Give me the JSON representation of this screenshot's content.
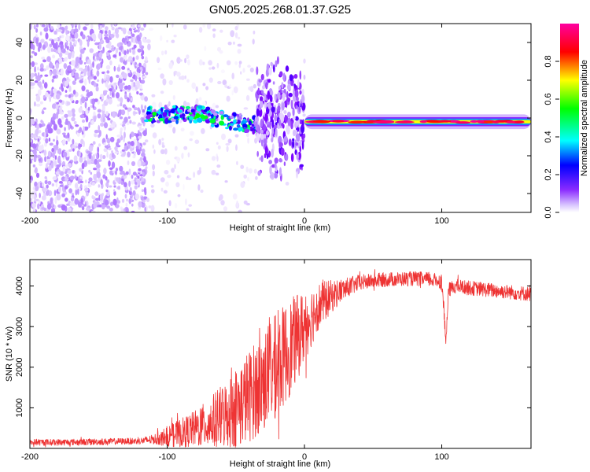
{
  "title": "GN05.2025.268.01.37.G25",
  "chart_data": [
    {
      "type": "heatmap",
      "name": "spectrogram",
      "title": "GN05.2025.268.01.37.G25",
      "xlabel": "Height of straight line (km)",
      "ylabel": "Frequency (Hz)",
      "xlim": [
        -200,
        165
      ],
      "ylim": [
        -50,
        50
      ],
      "xticks": [
        "-200",
        "-100",
        "0",
        "100"
      ],
      "yticks": [
        "-40",
        "-20",
        "0",
        "20",
        "40"
      ],
      "xtick_values": [
        -200,
        -100,
        0,
        100
      ],
      "ytick_values": [
        -40,
        -20,
        0,
        20,
        40
      ],
      "colorbar": {
        "label": "Normalized spectral amplitude",
        "range": [
          0,
          1
        ],
        "ticks": [
          "0.0",
          "0.2",
          "0.4",
          "0.6",
          "0.8"
        ],
        "tick_values": [
          0.0,
          0.2,
          0.4,
          0.6,
          0.8
        ],
        "colors": [
          "#ffffff",
          "#b98cff",
          "#7a00ff",
          "#0000ff",
          "#00ffff",
          "#00ff00",
          "#ffff00",
          "#ff0000",
          "#ff00a0"
        ]
      },
      "segments": [
        {
          "region": "noise",
          "x_start": -200,
          "x_end": -115,
          "freq_center_hz": 0,
          "freq_spread_hz": 50,
          "amplitude": 0.05
        },
        {
          "region": "weak-noise",
          "x_start": -115,
          "x_end": -35,
          "freq_center_hz": 0,
          "freq_spread_hz": 50,
          "amplitude": 0.02
        },
        {
          "region": "signal-onset",
          "x_start": -115,
          "x_end": -35,
          "freq_center_hz": 0,
          "freq_spread_hz": 5,
          "amplitude": 0.35
        },
        {
          "region": "scintillation",
          "x_start": -35,
          "x_end": 0,
          "freq_center_hz": 0,
          "freq_spread_hz": 35,
          "amplitude": 0.12
        },
        {
          "region": "tracked-carrier",
          "x_start": 0,
          "x_end": 165,
          "freq_center_hz": -2,
          "freq_spread_hz": 3,
          "amplitude": 0.75
        }
      ]
    },
    {
      "type": "line",
      "name": "snr",
      "xlabel": "Height of straight line (km)",
      "ylabel": "SNR (10 * v/v)",
      "xlim": [
        -200,
        165
      ],
      "ylim": [
        0,
        4650
      ],
      "xticks": [
        "-200",
        "-100",
        "0",
        "100"
      ],
      "yticks": [
        "1000",
        "2000",
        "3000",
        "4000"
      ],
      "xtick_values": [
        -200,
        -100,
        0,
        100
      ],
      "ytick_values": [
        1000,
        2000,
        3000,
        4000
      ],
      "series": [
        {
          "name": "SNR",
          "color": "#ee3333",
          "x": [
            -200,
            -180,
            -160,
            -140,
            -120,
            -110,
            -100,
            -90,
            -80,
            -70,
            -60,
            -50,
            -40,
            -30,
            -20,
            -10,
            0,
            10,
            20,
            30,
            40,
            50,
            60,
            70,
            80,
            90,
            100,
            101,
            103,
            105,
            110,
            120,
            130,
            140,
            150,
            165
          ],
          "y": [
            150,
            150,
            160,
            170,
            180,
            220,
            300,
            380,
            480,
            600,
            780,
            1000,
            1300,
            1650,
            2050,
            2500,
            3000,
            3500,
            3750,
            3950,
            4080,
            4130,
            4160,
            4170,
            4180,
            4160,
            4120,
            3700,
            2600,
            3900,
            4000,
            3950,
            3920,
            3880,
            3850,
            3800
          ],
          "noise_amplitude": [
            80,
            80,
            80,
            80,
            80,
            120,
            250,
            350,
            450,
            600,
            800,
            1000,
            1150,
            1250,
            1300,
            1200,
            900,
            600,
            400,
            250,
            200,
            180,
            180,
            180,
            180,
            180,
            180,
            180,
            180,
            180,
            180,
            180,
            180,
            180,
            180,
            180
          ]
        }
      ]
    }
  ]
}
